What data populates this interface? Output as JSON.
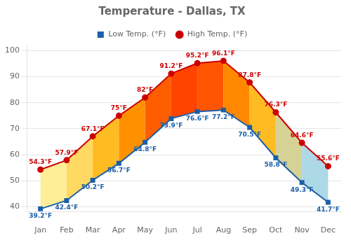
{
  "chart_data": {
    "type": "line",
    "title": "Temperature - Dallas, TX",
    "categories": [
      "Jan",
      "Feb",
      "Mar",
      "Apr",
      "May",
      "Jun",
      "Jul",
      "Aug",
      "Sep",
      "Oct",
      "Nov",
      "Dec"
    ],
    "series": [
      {
        "name": "Low Temp. (°F)",
        "color": "#1a5fa8",
        "marker": "square",
        "values": [
          39.2,
          42.4,
          50.2,
          56.7,
          64.8,
          73.9,
          76.6,
          77.2,
          70.5,
          58.8,
          49.3,
          41.7
        ],
        "value_labels": [
          "39.2°F",
          "42.4°F",
          "50.2°F",
          "56.7°F",
          "64.8°F",
          "73.9°F",
          "76.6°F",
          "77.2°F",
          "70.5°F",
          "58.8°F",
          "49.3°F",
          "41.7°F"
        ]
      },
      {
        "name": "High Temp. (°F)",
        "color": "#cc0000",
        "marker": "circle",
        "values": [
          54.3,
          57.9,
          67.1,
          75.0,
          82.0,
          91.2,
          95.2,
          96.1,
          87.8,
          76.3,
          64.6,
          55.6
        ],
        "value_labels": [
          "54.3°F",
          "57.9°F",
          "67.1°F",
          "75°F",
          "82°F",
          "91.2°F",
          "95.2°F",
          "96.1°F",
          "87.8°F",
          "76.3°F",
          "64.6°F",
          "55.6°F"
        ]
      }
    ],
    "colors": [
      "#fff5b0",
      "#ffe680",
      "#ffcc44",
      "#ffaa00",
      "#ff7700",
      "#ff4400",
      "#ff4400",
      "#ff6600",
      "#ffaa00",
      "#ffcc44",
      "#add8e6",
      "#add8e6"
    ],
    "ylim": [
      38,
      102
    ],
    "yticks": [
      40,
      50,
      60,
      70,
      80,
      90,
      100
    ],
    "grid": true,
    "legend": "top",
    "data_labels": true
  }
}
